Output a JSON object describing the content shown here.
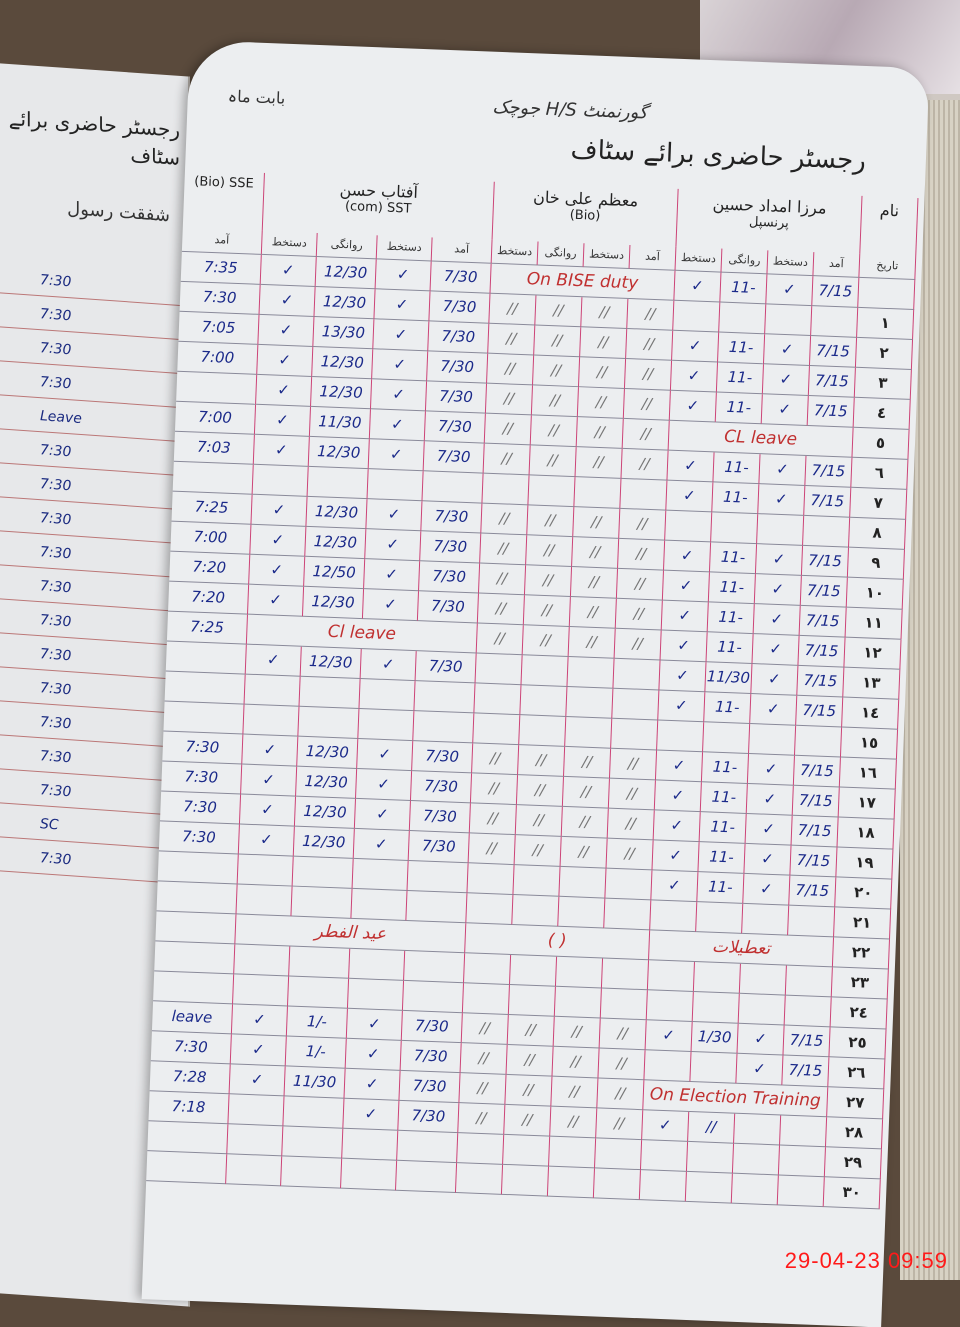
{
  "header": {
    "title": "رجسٹر حاضری برائے سٹاف",
    "school": "گورنمنٹ H/S جوچک",
    "month_label": "بابت ماہ"
  },
  "left_page": {
    "title": "رجسٹر حاضری برائے سٹاف",
    "name": "شفقت رسول",
    "entries": [
      "7:30",
      "7:30",
      "7:30",
      "7:30",
      "Leave",
      "7:30",
      "7:30",
      "7:30",
      "7:30",
      "7:30",
      "7:30",
      "7:30",
      "7:30",
      "7:30",
      "7:30",
      "7:30",
      "SC",
      "7:30"
    ]
  },
  "columns": {
    "teacher4": {
      "subject": "(Bio) SSE",
      "time_label": "آمد"
    },
    "aftab": {
      "name": "آفتاب حسن",
      "subject": "(com) SST",
      "sig": "دستخط",
      "out": "روانگی",
      "in": "آمد"
    },
    "muazzam": {
      "name": "معظم علی خان",
      "subject": "(Bio)",
      "sig": "دستخط",
      "out": "روانگی",
      "in": "آمد"
    },
    "mirza": {
      "name": "مرزا امداد حسین",
      "subject": "پرنسپل",
      "sig": "دستخط",
      "out": "روانگی",
      "in": "آمد"
    },
    "date": {
      "name": "نام",
      "label": "تاریخ"
    }
  },
  "sig_mark": "✓",
  "rows": [
    {
      "label": "",
      "t4": "7:35",
      "ao": "12/30",
      "ai": "7/30",
      "notes": {
        "muazzam": "On BISE duty"
      },
      "mo": "11-",
      "mi": "7/15"
    },
    {
      "label": "١",
      "t4": "7:30",
      "ao": "12/30",
      "ai": "7/30",
      "m": "//",
      "mo": "",
      "mi": ""
    },
    {
      "label": "٢",
      "t4": "7:05",
      "ao": "13/30",
      "ai": "7/30",
      "m": "//",
      "mo": "11-",
      "mi": "7/15"
    },
    {
      "label": "٣",
      "t4": "7:00",
      "ao": "12/30",
      "ai": "7/30",
      "m": "//",
      "mo": "11-",
      "mi": "7/15"
    },
    {
      "label": "٤",
      "t4": "",
      "ao": "12/30",
      "ai": "7/30",
      "m": "//",
      "mo": "11-",
      "mi": "7/15"
    },
    {
      "label": "٥",
      "t4": "7:00",
      "ao": "11/30",
      "ai": "7/30",
      "m": "//",
      "notes": {
        "mirza": "CL leave"
      }
    },
    {
      "label": "٦",
      "t4": "7:03",
      "ao": "12/30",
      "ai": "7/30",
      "m": "//",
      "mo": "11-",
      "mi": "7/15"
    },
    {
      "label": "٧",
      "t4": "",
      "ao": "",
      "ai": "",
      "m": "",
      "mo": "11-",
      "mi": "7/15"
    },
    {
      "label": "٨",
      "t4": "7:25",
      "ao": "12/30",
      "ai": "7/30",
      "m": "//",
      "mo": "",
      "mi": ""
    },
    {
      "label": "٩",
      "t4": "7:00",
      "ao": "12/30",
      "ai": "7/30",
      "m": "//",
      "mo": "11-",
      "mi": "7/15"
    },
    {
      "label": "١٠",
      "t4": "7:20",
      "ao": "12/50",
      "ai": "7/30",
      "m": "//",
      "mo": "11-",
      "mi": "7/15"
    },
    {
      "label": "١١",
      "t4": "7:20",
      "ao": "12/30",
      "ai": "7/30",
      "m": "//",
      "mo": "11-",
      "mi": "7/15"
    },
    {
      "label": "١٢",
      "t4": "7:25",
      "notes": {
        "aftab": "Cl leave"
      },
      "m": "//",
      "mo": "11-",
      "mi": "7/15"
    },
    {
      "label": "١٣",
      "t4": "",
      "ao": "12/30",
      "ai": "7/30",
      "m": "",
      "mo": "11/30",
      "mi": "7/15"
    },
    {
      "label": "١٤",
      "t4": "",
      "ao": "",
      "ai": "",
      "m": "",
      "mo": "11-",
      "mi": "7/15"
    },
    {
      "label": "١٥",
      "t4": "",
      "ao": "",
      "ai": "",
      "m": "",
      "mo": "",
      "mi": ""
    },
    {
      "label": "١٦",
      "t4": "7:30",
      "ao": "12/30",
      "ai": "7/30",
      "m": "//",
      "mo": "11-",
      "mi": "7/15"
    },
    {
      "label": "١٧",
      "t4": "7:30",
      "ao": "12/30",
      "ai": "7/30",
      "m": "//",
      "mo": "11-",
      "mi": "7/15"
    },
    {
      "label": "١٨",
      "t4": "7:30",
      "ao": "12/30",
      "ai": "7/30",
      "m": "//",
      "mo": "11-",
      "mi": "7/15"
    },
    {
      "label": "١٩",
      "t4": "7:30",
      "ao": "12/30",
      "ai": "7/30",
      "m": "//",
      "mo": "11-",
      "mi": "7/15"
    },
    {
      "label": "٢٠",
      "t4": "",
      "ao": "",
      "ai": "",
      "m": "",
      "mo": "11-",
      "mi": "7/15"
    },
    {
      "label": "٢١",
      "t4": "",
      "ao": "",
      "ai": "",
      "m": "",
      "mo": "",
      "mi": ""
    },
    {
      "label": "٢٢",
      "notes": {
        "aftab": "عید الفطر",
        "muazzam": "(   )",
        "mirza": "تعطیلات"
      }
    },
    {
      "label": "٢٣",
      "t4": "",
      "ao": "",
      "ai": "",
      "m": "",
      "mo": "",
      "mi": ""
    },
    {
      "label": "٢٤",
      "t4": "",
      "ao": "",
      "ai": "",
      "m": "",
      "mo": "",
      "mi": ""
    },
    {
      "label": "٢٥",
      "t4": "leave",
      "ao": "1/-",
      "ai": "7/30",
      "m": "//",
      "mo": "1/30",
      "mi": "7/15"
    },
    {
      "label": "٢٦",
      "t4": "7:30",
      "ao": "1/-",
      "ai": "7/30",
      "m": "//",
      "mo": "",
      "mi": "7/15"
    },
    {
      "label": "٢٧",
      "t4": "7:28",
      "ao": "11/30",
      "ai": "7/30",
      "m": "//",
      "notes": {
        "mirza": "On Election Training"
      }
    },
    {
      "label": "٢٨",
      "t4": "7:18",
      "ao": "",
      "ai": "7/30",
      "m": "//",
      "mo": "//",
      "mi": ""
    },
    {
      "label": "٢٩",
      "t4": "",
      "ao": "",
      "ai": "",
      "m": "",
      "mo": "",
      "mi": ""
    },
    {
      "label": "٣٠",
      "t4": "",
      "ao": "",
      "ai": "",
      "m": "",
      "mo": "",
      "mi": ""
    }
  ],
  "timestamp": "29-04-23  09:59"
}
